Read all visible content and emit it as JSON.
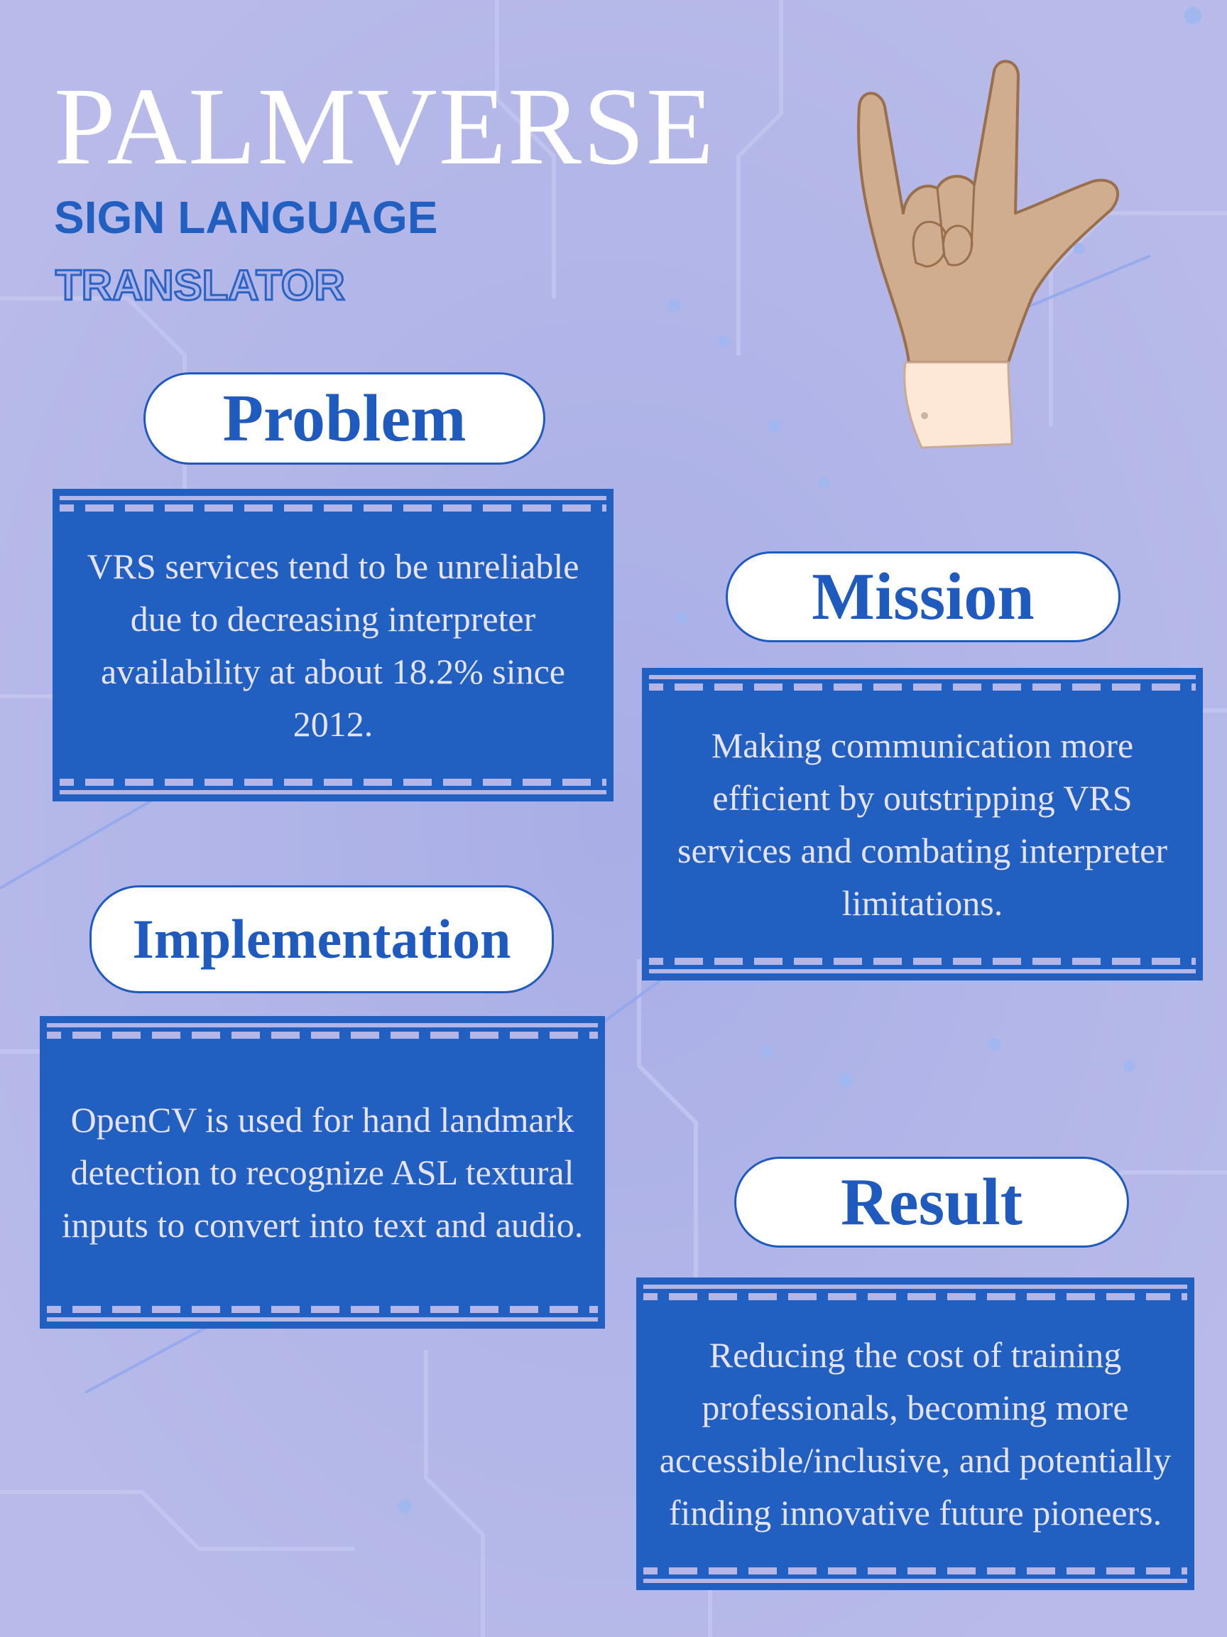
{
  "colors": {
    "background": "#b3b6e6",
    "card_blue": "#2160c0",
    "heading_blue": "#1f5bbe",
    "card_text": "#e6e3f8",
    "title_white": "#ffffff"
  },
  "header": {
    "title": "PALMVERSE",
    "subtitle": "SIGN LANGUAGE",
    "outline": "TRANSLATOR"
  },
  "illustration": {
    "icon": "hand-sign-icon"
  },
  "sections": {
    "problem": {
      "heading": "Problem",
      "text": "VRS services tend to be unreliable due to decreasing interpreter availability at about 18.2% since 2012."
    },
    "mission": {
      "heading": "Mission",
      "text": "Making communication more efficient by outstripping VRS services and combating interpreter limitations."
    },
    "implementation": {
      "heading": "Implementation",
      "text": "OpenCV is used for hand landmark detection to recognize ASL textural  inputs to convert into text and audio."
    },
    "result": {
      "heading": "Result",
      "text": "Reducing the cost of training professionals, becoming more accessible/inclusive, and potentially finding innovative future pioneers."
    }
  }
}
